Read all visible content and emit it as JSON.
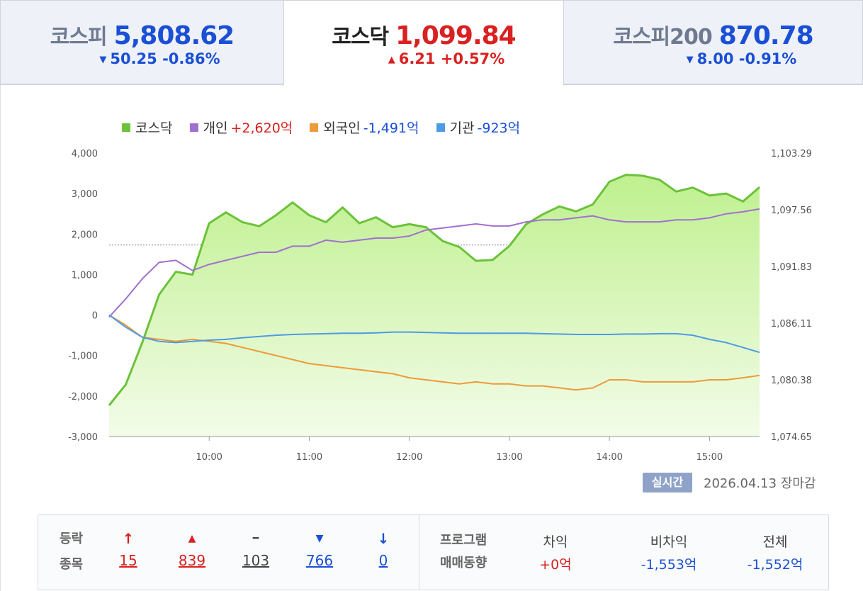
{
  "tabs": [
    {
      "name": "코스피",
      "value": "5,808.62",
      "direction": "down",
      "change": "50.25 -0.86%"
    },
    {
      "name": "코스닥",
      "value": "1,099.84",
      "direction": "up",
      "change": "6.21 +0.57%"
    },
    {
      "name": "코스피200",
      "value": "870.78",
      "direction": "down",
      "change": "8.00 -0.91%"
    }
  ],
  "legend": [
    {
      "label": "코스닥",
      "value": "",
      "color": "#6cc23a",
      "value_dir": ""
    },
    {
      "label": "개인",
      "value": "+2,620억",
      "color": "#a070d0",
      "value_dir": "up"
    },
    {
      "label": "외국인",
      "value": "-1,491억",
      "color": "#ee9a3a",
      "value_dir": "down"
    },
    {
      "label": "기관",
      "value": "-923억",
      "color": "#4f9ae4",
      "value_dir": "down"
    }
  ],
  "realtime_label": "실시간",
  "market_date": "2026.04.13 장마감",
  "stats": {
    "rise_fall_label": "등락",
    "stocks_label": "종목",
    "counts": [
      {
        "icon": "↑",
        "value": "15",
        "dir": "up"
      },
      {
        "icon": "▲",
        "value": "839",
        "dir": "up"
      },
      {
        "icon": "━",
        "value": "103",
        "dir": "flat"
      },
      {
        "icon": "▼",
        "value": "766",
        "dir": "down"
      },
      {
        "icon": "↓",
        "value": "0",
        "dir": "down"
      }
    ],
    "program_label": "프로그램",
    "trend_label": "매매동향",
    "program": [
      {
        "label": "차익",
        "value": "+0억",
        "dir": "up"
      },
      {
        "label": "비차익",
        "value": "-1,553억",
        "dir": "down"
      },
      {
        "label": "전체",
        "value": "-1,552억",
        "dir": "down"
      }
    ]
  },
  "chart_data": {
    "type": "line",
    "x_tick_labels": [
      "10:00",
      "11:00",
      "12:00",
      "13:00",
      "14:00",
      "15:00"
    ],
    "x_start": "09:00",
    "x_end": "15:30",
    "y_left": {
      "ticks": [
        "4,000",
        "3,000",
        "2,000",
        "1,000",
        "0",
        "-1,000",
        "-2,000",
        "-3,000"
      ],
      "range": [
        -3000,
        4000
      ]
    },
    "y_right": {
      "ticks": [
        "1,103.29",
        "1,097.56",
        "1,091.83",
        "1,086.11",
        "1,080.38",
        "1,074.65"
      ],
      "range": [
        1074.65,
        1103.29
      ]
    },
    "reference_line_right": 1094.0,
    "series": [
      {
        "name": "코스닥",
        "axis": "right",
        "color": "#6cc23a",
        "area": true,
        "x": [
          "09:00",
          "09:10",
          "09:20",
          "09:30",
          "09:40",
          "09:50",
          "10:00",
          "10:10",
          "10:20",
          "10:30",
          "10:40",
          "10:50",
          "11:00",
          "11:10",
          "11:20",
          "11:30",
          "11:40",
          "11:50",
          "12:00",
          "12:10",
          "12:20",
          "12:30",
          "12:40",
          "12:50",
          "13:00",
          "13:10",
          "13:20",
          "13:30",
          "13:40",
          "13:50",
          "14:00",
          "14:10",
          "14:20",
          "14:30",
          "14:40",
          "14:50",
          "15:00",
          "15:10",
          "15:20",
          "15:30"
        ],
        "y": [
          1077.8,
          1079.9,
          1084.2,
          1089.0,
          1091.3,
          1091.0,
          1096.2,
          1097.3,
          1096.3,
          1095.9,
          1097.0,
          1098.3,
          1097.0,
          1096.3,
          1097.8,
          1096.2,
          1096.8,
          1095.8,
          1096.1,
          1095.8,
          1094.4,
          1093.8,
          1092.4,
          1092.5,
          1093.9,
          1096.1,
          1097.1,
          1097.9,
          1097.4,
          1098.1,
          1100.4,
          1101.1,
          1101.0,
          1100.6,
          1099.4,
          1099.8,
          1099.0,
          1099.2,
          1098.4,
          1099.84
        ]
      },
      {
        "name": "개인",
        "axis": "left",
        "color": "#a070d0",
        "area": false,
        "x": [
          "09:00",
          "09:10",
          "09:20",
          "09:30",
          "09:40",
          "09:50",
          "10:00",
          "10:10",
          "10:20",
          "10:30",
          "10:40",
          "10:50",
          "11:00",
          "11:10",
          "11:20",
          "11:30",
          "11:40",
          "11:50",
          "12:00",
          "12:10",
          "12:20",
          "12:30",
          "12:40",
          "12:50",
          "13:00",
          "13:10",
          "13:20",
          "13:30",
          "13:40",
          "13:50",
          "14:00",
          "14:10",
          "14:20",
          "14:30",
          "14:40",
          "14:50",
          "15:00",
          "15:10",
          "15:20",
          "15:30"
        ],
        "y": [
          -50,
          400,
          900,
          1300,
          1350,
          1100,
          1250,
          1350,
          1450,
          1550,
          1550,
          1700,
          1700,
          1850,
          1800,
          1850,
          1900,
          1900,
          1950,
          2100,
          2150,
          2200,
          2250,
          2200,
          2200,
          2300,
          2350,
          2350,
          2400,
          2450,
          2350,
          2300,
          2300,
          2300,
          2350,
          2350,
          2400,
          2500,
          2550,
          2620
        ]
      },
      {
        "name": "외국인",
        "axis": "left",
        "color": "#ee9a3a",
        "area": false,
        "x": [
          "09:00",
          "09:10",
          "09:20",
          "09:30",
          "09:40",
          "09:50",
          "10:00",
          "10:10",
          "10:20",
          "10:30",
          "10:40",
          "10:50",
          "11:00",
          "11:10",
          "11:20",
          "11:30",
          "11:40",
          "11:50",
          "12:00",
          "12:10",
          "12:20",
          "12:30",
          "12:40",
          "12:50",
          "13:00",
          "13:10",
          "13:20",
          "13:30",
          "13:40",
          "13:50",
          "14:00",
          "14:10",
          "14:20",
          "14:30",
          "14:40",
          "14:50",
          "15:00",
          "15:10",
          "15:20",
          "15:30"
        ],
        "y": [
          0,
          -250,
          -550,
          -600,
          -650,
          -600,
          -650,
          -700,
          -800,
          -900,
          -1000,
          -1100,
          -1200,
          -1250,
          -1300,
          -1350,
          -1400,
          -1450,
          -1550,
          -1600,
          -1650,
          -1700,
          -1650,
          -1700,
          -1700,
          -1750,
          -1750,
          -1800,
          -1850,
          -1800,
          -1600,
          -1600,
          -1650,
          -1650,
          -1650,
          -1650,
          -1600,
          -1600,
          -1550,
          -1491
        ]
      },
      {
        "name": "기관",
        "axis": "left",
        "color": "#4f9ae4",
        "area": false,
        "x": [
          "09:00",
          "09:10",
          "09:20",
          "09:30",
          "09:40",
          "09:50",
          "10:00",
          "10:10",
          "10:20",
          "10:30",
          "10:40",
          "10:50",
          "11:00",
          "11:10",
          "11:20",
          "11:30",
          "11:40",
          "11:50",
          "12:00",
          "12:10",
          "12:20",
          "12:30",
          "12:40",
          "12:50",
          "13:00",
          "13:10",
          "13:20",
          "13:30",
          "13:40",
          "13:50",
          "14:00",
          "14:10",
          "14:20",
          "14:30",
          "14:40",
          "14:50",
          "15:00",
          "15:10",
          "15:20",
          "15:30"
        ],
        "y": [
          0,
          -300,
          -550,
          -650,
          -680,
          -650,
          -620,
          -600,
          -560,
          -530,
          -500,
          -480,
          -470,
          -460,
          -450,
          -450,
          -440,
          -420,
          -420,
          -430,
          -440,
          -450,
          -450,
          -450,
          -450,
          -450,
          -460,
          -470,
          -480,
          -480,
          -480,
          -470,
          -470,
          -460,
          -460,
          -500,
          -600,
          -680,
          -800,
          -923
        ]
      }
    ]
  }
}
